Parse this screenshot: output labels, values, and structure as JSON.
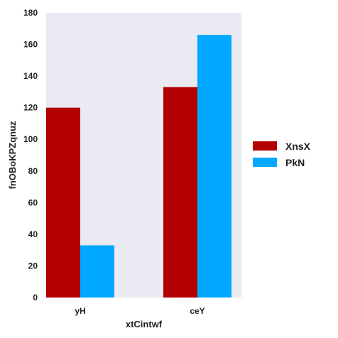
{
  "chart_data": {
    "type": "bar",
    "title": "",
    "xlabel": "xtCintwf",
    "ylabel": "fnOBoKPZqnuz",
    "categories": [
      "yH",
      "ceY"
    ],
    "series": [
      {
        "name": "XnsX",
        "values": [
          120,
          133
        ],
        "color": "#b30000"
      },
      {
        "name": "PkN",
        "values": [
          33,
          166
        ],
        "color": "#00a8ff"
      }
    ],
    "ylim": [
      0,
      180
    ],
    "yticks": [
      0,
      20,
      40,
      60,
      80,
      100,
      120,
      140,
      160,
      180
    ],
    "grid": false,
    "legend_position": "right",
    "background_color": "#e9eaf2"
  }
}
